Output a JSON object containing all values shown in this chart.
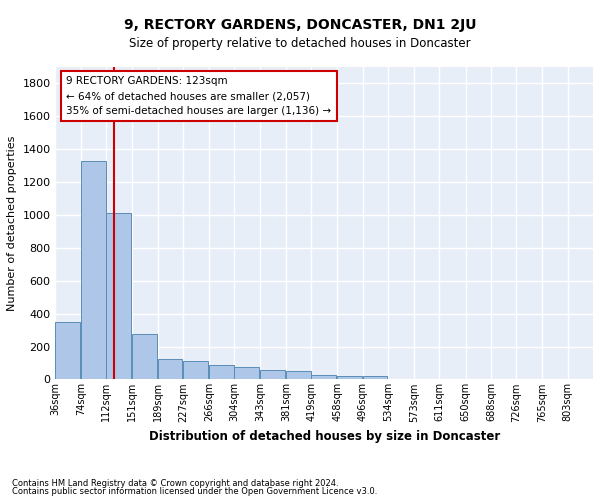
{
  "title": "9, RECTORY GARDENS, DONCASTER, DN1 2JU",
  "subtitle": "Size of property relative to detached houses in Doncaster",
  "xlabel": "Distribution of detached houses by size in Doncaster",
  "ylabel": "Number of detached properties",
  "footnote1": "Contains HM Land Registry data © Crown copyright and database right 2024.",
  "footnote2": "Contains public sector information licensed under the Open Government Licence v3.0.",
  "annotation_title": "9 RECTORY GARDENS: 123sqm",
  "annotation_line2": "← 64% of detached houses are smaller (2,057)",
  "annotation_line3": "35% of semi-detached houses are larger (1,136) →",
  "property_size": 123,
  "bin_starts": [
    36,
    74,
    112,
    151,
    189,
    227,
    266,
    304,
    343,
    381,
    419,
    458,
    496,
    534,
    573,
    611,
    650,
    688,
    726,
    765
  ],
  "bin_labels": [
    "36sqm",
    "74sqm",
    "112sqm",
    "151sqm",
    "189sqm",
    "227sqm",
    "266sqm",
    "304sqm",
    "343sqm",
    "381sqm",
    "419sqm",
    "458sqm",
    "496sqm",
    "534sqm",
    "573sqm",
    "611sqm",
    "650sqm",
    "688sqm",
    "726sqm",
    "765sqm",
    "803sqm"
  ],
  "bar_values": [
    350,
    1330,
    1010,
    275,
    125,
    110,
    90,
    75,
    60,
    50,
    30,
    20,
    20,
    0,
    0,
    0,
    0,
    0,
    0,
    0
  ],
  "bar_color": "#aec6e8",
  "bar_edge_color": "#5b8db8",
  "background_color": "#e8eef8",
  "grid_color": "#ffffff",
  "annotation_box_color": "#ffffff",
  "annotation_box_edge": "#cc0000",
  "vline_color": "#cc0000",
  "ylim": [
    0,
    1900
  ],
  "yticks": [
    0,
    200,
    400,
    600,
    800,
    1000,
    1200,
    1400,
    1600,
    1800
  ]
}
